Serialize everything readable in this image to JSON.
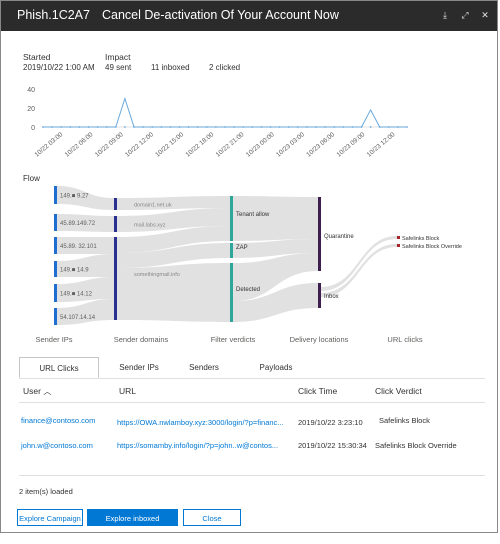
{
  "window": {
    "title_id": "Phish.1C2A7",
    "title_text": "Cancel De-activation Of Your Account Now",
    "icons": [
      "download-icon",
      "expand-icon",
      "close-icon"
    ]
  },
  "stats": {
    "started_label": "Started",
    "started_value": "2019/10/22 1:00 AM",
    "impact_label": "Impact",
    "sent": "49 sent",
    "inboxed": "11 inboxed",
    "clicked": "2 clicked"
  },
  "chart_data": {
    "type": "line",
    "yticks": [
      "40",
      "20",
      "0"
    ],
    "ylim": [
      0,
      40
    ],
    "x": [
      "10/22 03:00",
      "10/22 06:00",
      "10/22 09:00",
      "10/22 12:00",
      "10/22 15:00",
      "10/22 18:00",
      "10/22 21:00",
      "10/23 00:00",
      "10/23 03:00",
      "10/23 06:00",
      "10/23 09:00",
      "10/23 12:00"
    ],
    "series": [
      {
        "points": [
          [
            0,
            0
          ],
          [
            8,
            0
          ],
          [
            9,
            30
          ],
          [
            10,
            0
          ],
          [
            35,
            0
          ],
          [
            36,
            18
          ],
          [
            37,
            0
          ],
          [
            40,
            0
          ]
        ]
      }
    ],
    "color": "#69a9dc"
  },
  "flow": {
    "label": "Flow",
    "sender_ips": [
      "149.■ 9.27",
      "45.89.149.72",
      "45.89. 32.101",
      "149.■ 14.9",
      "149.■ 14.12",
      "54.107.14.14"
    ],
    "sender_domains": [
      "domain1.net.uk",
      "mail.labs.xyz",
      "somethingmail.info"
    ],
    "verdicts": [
      "Tenant allow",
      "ZAP",
      "Detected"
    ],
    "locations": [
      "Quarantine",
      "Inbox"
    ],
    "clicks": [
      "Safelinks Block",
      "Safelinks Block Override"
    ],
    "column_labels": [
      "Sender IPs",
      "Sender domains",
      "Filter verdicts",
      "Delivery locations",
      "URL clicks"
    ]
  },
  "tabs": [
    "URL Clicks",
    "Sender IPs",
    "Senders",
    "Payloads"
  ],
  "table": {
    "headers": {
      "user": "User",
      "url": "URL",
      "click_time": "Click Time",
      "verdict": "Click Verdict"
    },
    "rows": [
      {
        "user": "finance@contoso.com",
        "url": "https://OWA.nwlamboy.xyz:3000/login/?p=financ...",
        "time": "2019/10/22 3:23:10",
        "verdict": "Safelinks Block"
      },
      {
        "user": "john.w@contoso.com",
        "url": "https://somamby.info/login/?p=john..w@contos...",
        "time": "2019/10/22 15:30:34",
        "verdict": "Safelinks Block Override"
      }
    ],
    "loaded": "2 item(s) loaded"
  },
  "buttons": {
    "explore_campaign": "Explore Campaign",
    "explore_inboxed": "Explore inboxed messages",
    "close": "Close"
  }
}
